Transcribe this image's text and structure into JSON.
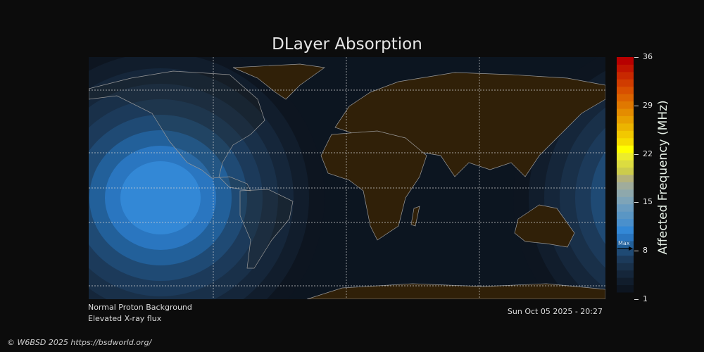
{
  "title": "DLayer Absorption",
  "status": {
    "proton": "Normal Proton Background",
    "xray": "Elevated X-ray flux",
    "timestamp": "Sun Oct 05 2025 - 20:27"
  },
  "credit": "© W6BSD 2025 https://bsdworld.org/",
  "colorbar": {
    "label": "Affected Frequency (MHz)",
    "ticks": [
      "36",
      "29",
      "22",
      "15",
      "8",
      "1"
    ],
    "range": [
      1,
      36
    ],
    "marker_label": "Max",
    "marker_value": 8.5,
    "colors": [
      "#0d1520",
      "#111d2c",
      "#15263a",
      "#193049",
      "#1c3a5a",
      "#1f4a74",
      "#22609a",
      "#2a76c0",
      "#3388d6",
      "#4a90cc",
      "#5a96c4",
      "#6a9cc0",
      "#7ea4b8",
      "#8ea8ac",
      "#a0ac9c",
      "#b4b27c",
      "#cccc4c",
      "#dcdc40",
      "#ecec2c",
      "#ffff00",
      "#f6dc00",
      "#f2c800",
      "#ecb400",
      "#e8a000",
      "#e48c00",
      "#e07800",
      "#dc6400",
      "#d85000",
      "#d03c00",
      "#c82800",
      "#c01400",
      "#b80000"
    ]
  },
  "map": {
    "accent_land": "#302008",
    "ocean": "#0c1520",
    "absorption_peak_color": "#2e8ad8"
  }
}
